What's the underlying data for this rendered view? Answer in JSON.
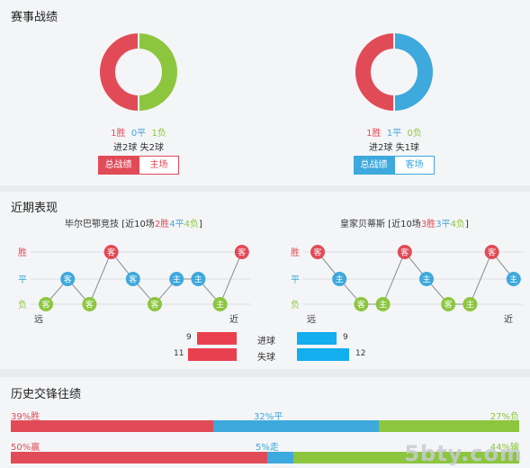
{
  "record": {
    "title": "赛事战绩",
    "home": {
      "donut": [
        {
          "value": 1,
          "color": "#8cc63f"
        },
        {
          "value": 1,
          "color": "#e14b57"
        }
      ],
      "win": "1胜",
      "draw": "0平",
      "loss": "1负",
      "goals": "进2球 失2球",
      "tab_total": "总战绩",
      "tab_venue": "主场"
    },
    "away": {
      "donut": [
        {
          "value": 1,
          "color": "#3da9dc"
        },
        {
          "value": 1,
          "color": "#e14b57"
        }
      ],
      "win": "1胜",
      "draw": "1平",
      "loss": "0负",
      "goals": "进2球 失1球",
      "tab_total": "总战绩",
      "tab_venue": "客场"
    }
  },
  "recent": {
    "title": "近期表现",
    "home": {
      "name": "毕尔巴鄂竞技",
      "summary_prefix": " [近10场",
      "wins": "2胜",
      "draws": "4平",
      "losses": "4负",
      "summary_suffix": "]",
      "results": [
        "L",
        "D",
        "L",
        "W",
        "D",
        "L",
        "D",
        "D",
        "L",
        "W"
      ],
      "venues": [
        "客",
        "客",
        "客",
        "客",
        "客",
        "客",
        "主",
        "主",
        "主",
        "客"
      ]
    },
    "away": {
      "name": "皇家贝蒂斯",
      "summary_prefix": " [近10场",
      "wins": "3胜",
      "draws": "3平",
      "losses": "4负",
      "summary_suffix": "]",
      "results": [
        "W",
        "D",
        "L",
        "L",
        "W",
        "D",
        "L",
        "L",
        "W",
        "D"
      ],
      "venues": [
        "客",
        "主",
        "客",
        "主",
        "客",
        "主",
        "客",
        "主",
        "客",
        "主"
      ]
    },
    "axis": {
      "win": "胜",
      "draw": "平",
      "loss": "负",
      "far": "远",
      "near": "近"
    },
    "goals_scored": {
      "label": "进球",
      "home": 9,
      "away": 9
    },
    "goals_conceded": {
      "label": "失球",
      "home": 11,
      "away": 12
    }
  },
  "history": {
    "title": "历史交锋往绩",
    "row1": {
      "a_label": "39%胜",
      "a": 39,
      "b_label": "32%平",
      "b": 32,
      "c_label": "27%负",
      "c": 27
    },
    "row2": {
      "a_label": "50%赢",
      "a": 50,
      "b_label": "5%走",
      "b": 5,
      "c_label": "44%输",
      "c": 44
    }
  },
  "watermark": "5bty.com"
}
